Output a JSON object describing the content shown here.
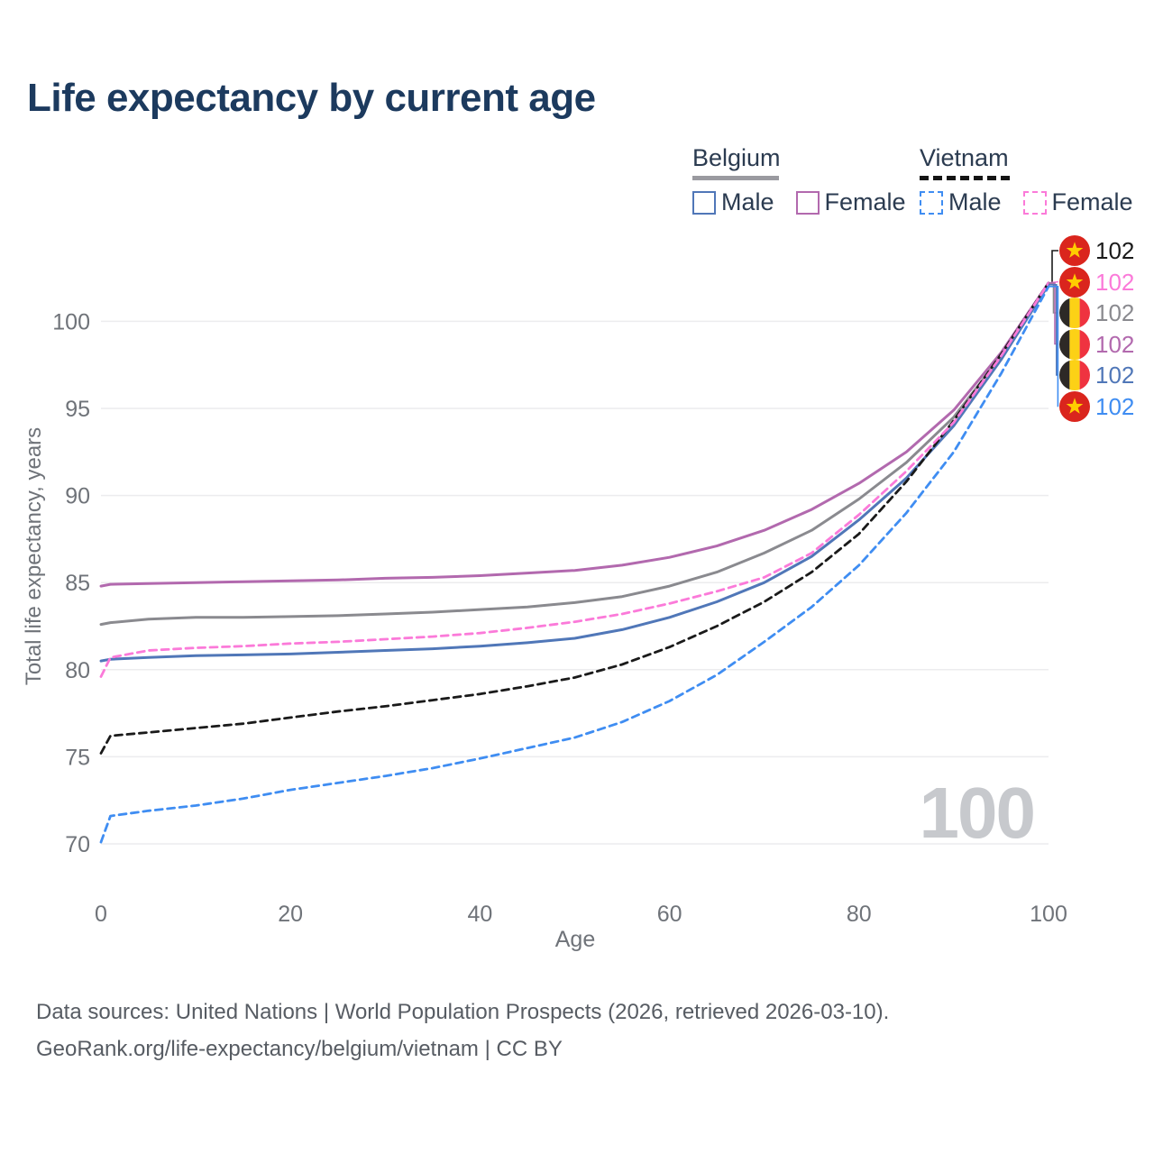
{
  "title": "Life expectancy by current age",
  "legend": {
    "groups": [
      {
        "id": "belgium",
        "label": "Belgium",
        "line_style": "solid",
        "items": [
          {
            "series": "belgium_male",
            "label": "Male"
          },
          {
            "series": "belgium_female",
            "label": "Female"
          }
        ]
      },
      {
        "id": "vietnam",
        "label": "Vietnam",
        "line_style": "dashed",
        "items": [
          {
            "series": "vietnam_male",
            "label": "Male"
          },
          {
            "series": "vietnam_female",
            "label": "Female"
          }
        ]
      }
    ]
  },
  "colors": {
    "title_text": "#1c3a5e",
    "legend_text": "#2b3b50",
    "axis_text": "#6f7379",
    "grid": "#ececee",
    "footer_text": "#575c63",
    "watermark": "#c7c9cd",
    "belgium_male": "#5077b8",
    "belgium_female": "#b269ae",
    "belgium_total": "#8a8a8f",
    "vietnam_male": "#3f8df2",
    "vietnam_female": "#fb7ad9",
    "vietnam_total": "#1a1a1a",
    "vietnam_flag_red": "#da251d",
    "vietnam_flag_star": "#ffcd00",
    "belgium_flag_black": "#2d2926",
    "belgium_flag_yellow": "#fcd116",
    "belgium_flag_red": "#ef3340"
  },
  "chart_data": {
    "type": "line",
    "title": "Life expectancy by current age",
    "xlabel": "Age",
    "ylabel": "Total life expectancy, years",
    "xlim": [
      0,
      100
    ],
    "ylim": [
      68.5,
      103
    ],
    "xticks": [
      0,
      20,
      40,
      60,
      80,
      100
    ],
    "yticks": [
      70,
      75,
      80,
      85,
      90,
      95,
      100
    ],
    "grid": true,
    "legend_position": "top-right",
    "x": [
      0,
      1,
      5,
      10,
      15,
      20,
      25,
      30,
      35,
      40,
      45,
      50,
      55,
      60,
      65,
      70,
      75,
      80,
      85,
      90,
      95,
      100
    ],
    "series": [
      {
        "key": "belgium_total",
        "name": "Belgium (total)",
        "dash": "solid",
        "values": [
          82.6,
          82.7,
          82.9,
          83.0,
          83.0,
          83.05,
          83.1,
          83.2,
          83.3,
          83.45,
          83.6,
          83.85,
          84.2,
          84.8,
          85.6,
          86.7,
          88.0,
          89.8,
          91.9,
          94.5,
          98.0,
          102.2
        ],
        "end_label": 102
      },
      {
        "key": "belgium_female",
        "name": "Belgium Female",
        "dash": "solid",
        "values": [
          84.8,
          84.9,
          84.95,
          85.0,
          85.05,
          85.1,
          85.15,
          85.25,
          85.3,
          85.4,
          85.55,
          85.7,
          86.0,
          86.45,
          87.1,
          88.0,
          89.2,
          90.7,
          92.5,
          94.9,
          98.2,
          102.2
        ],
        "end_label": 102
      },
      {
        "key": "belgium_male",
        "name": "Belgium Male",
        "dash": "solid",
        "values": [
          80.5,
          80.6,
          80.7,
          80.8,
          80.85,
          80.9,
          81.0,
          81.1,
          81.2,
          81.35,
          81.55,
          81.8,
          82.3,
          83.0,
          83.9,
          85.0,
          86.5,
          88.6,
          91.0,
          94.0,
          97.8,
          102.1
        ],
        "end_label": 102
      },
      {
        "key": "vietnam_total",
        "name": "Vietnam (total)",
        "dash": "dashed",
        "values": [
          75.2,
          76.2,
          76.4,
          76.65,
          76.9,
          77.25,
          77.6,
          77.9,
          78.25,
          78.6,
          79.05,
          79.55,
          80.3,
          81.3,
          82.5,
          83.9,
          85.6,
          87.8,
          90.8,
          94.3,
          98.1,
          102.2
        ],
        "end_label": 102
      },
      {
        "key": "vietnam_female",
        "name": "Vietnam Female",
        "dash": "dashed",
        "values": [
          79.6,
          80.7,
          81.1,
          81.25,
          81.35,
          81.5,
          81.6,
          81.75,
          81.9,
          82.1,
          82.4,
          82.75,
          83.2,
          83.8,
          84.5,
          85.3,
          86.7,
          88.9,
          91.4,
          94.2,
          98.0,
          102.2
        ],
        "end_label": 102
      },
      {
        "key": "vietnam_male",
        "name": "Vietnam Male",
        "dash": "dashed",
        "values": [
          70.1,
          71.6,
          71.9,
          72.2,
          72.6,
          73.1,
          73.5,
          73.9,
          74.35,
          74.9,
          75.5,
          76.1,
          77.0,
          78.2,
          79.7,
          81.6,
          83.6,
          86.0,
          89.0,
          92.5,
          97.0,
          102.0
        ],
        "end_label": 102
      }
    ],
    "watermark": "100"
  },
  "end_labels": [
    {
      "series": "vietnam_total",
      "flag": "vietnam",
      "value": "102"
    },
    {
      "series": "vietnam_female",
      "flag": "vietnam",
      "value": "102"
    },
    {
      "series": "belgium_total",
      "flag": "belgium",
      "value": "102"
    },
    {
      "series": "belgium_female",
      "flag": "belgium",
      "value": "102"
    },
    {
      "series": "belgium_male",
      "flag": "belgium",
      "value": "102"
    },
    {
      "series": "vietnam_male",
      "flag": "vietnam",
      "value": "102"
    }
  ],
  "footer": {
    "line1": "Data sources: United Nations | World Population Prospects (2026, retrieved 2026-03-10).",
    "line2": "GeoRank.org/life-expectancy/belgium/vietnam | CC BY"
  },
  "icons": [
    "vietnam-flag-icon",
    "belgium-flag-icon"
  ]
}
